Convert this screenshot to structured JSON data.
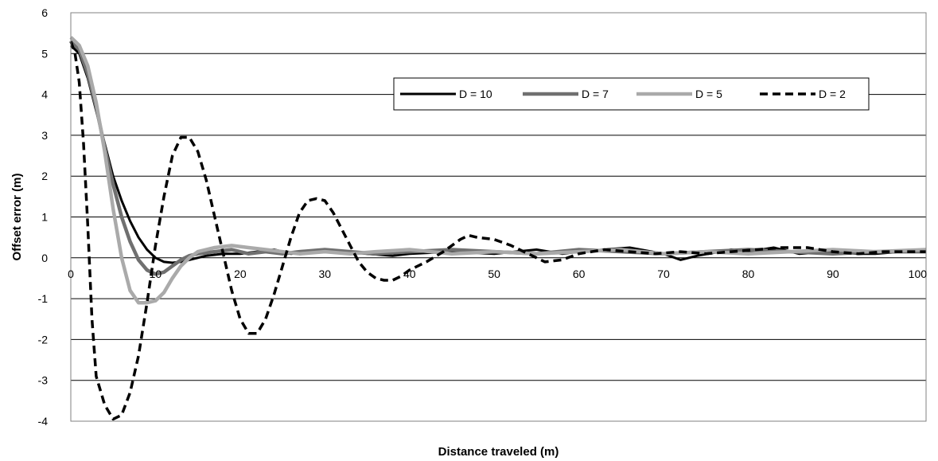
{
  "chart_data": {
    "type": "line",
    "title": "",
    "xlabel": "Distance traveled (m)",
    "ylabel": "Offset error (m)",
    "xlim": [
      0,
      101
    ],
    "ylim": [
      -4,
      6
    ],
    "x_ticks": [
      0,
      10,
      20,
      30,
      40,
      50,
      60,
      70,
      80,
      90,
      100
    ],
    "x_tick_labels": [
      "0",
      "10",
      "20",
      "30",
      "40",
      "50",
      "60",
      "70",
      "80",
      "90",
      "100"
    ],
    "y_ticks": [
      -4,
      -3,
      -2,
      -1,
      0,
      1,
      2,
      3,
      4,
      5,
      6
    ],
    "y_tick_labels": [
      "-4",
      "-3",
      "-2",
      "-1",
      "0",
      "1",
      "2",
      "3",
      "4",
      "5",
      "6"
    ],
    "grid": "horizontal",
    "legend_position": "top-right",
    "series": [
      {
        "name": "D = 10",
        "color": "#000000",
        "style": "solid",
        "points": [
          [
            0,
            5.2
          ],
          [
            1,
            5.0
          ],
          [
            2,
            4.4
          ],
          [
            3,
            3.6
          ],
          [
            4,
            2.8
          ],
          [
            5,
            2.0
          ],
          [
            6,
            1.4
          ],
          [
            7,
            0.9
          ],
          [
            8,
            0.5
          ],
          [
            9,
            0.2
          ],
          [
            10,
            0.0
          ],
          [
            11,
            -0.1
          ],
          [
            12,
            -0.12
          ],
          [
            13,
            -0.1
          ],
          [
            14,
            -0.05
          ],
          [
            15,
            0.0
          ],
          [
            16,
            0.05
          ],
          [
            18,
            0.1
          ],
          [
            20,
            0.1
          ],
          [
            22,
            0.15
          ],
          [
            24,
            0.2
          ],
          [
            26,
            0.1
          ],
          [
            28,
            0.15
          ],
          [
            30,
            0.2
          ],
          [
            32,
            0.15
          ],
          [
            35,
            0.1
          ],
          [
            38,
            0.05
          ],
          [
            40,
            0.1
          ],
          [
            45,
            0.15
          ],
          [
            50,
            0.1
          ],
          [
            55,
            0.2
          ],
          [
            58,
            0.1
          ],
          [
            60,
            0.15
          ],
          [
            63,
            0.2
          ],
          [
            66,
            0.25
          ],
          [
            70,
            0.1
          ],
          [
            72,
            -0.05
          ],
          [
            74,
            0.05
          ],
          [
            78,
            0.2
          ],
          [
            80,
            0.15
          ],
          [
            83,
            0.25
          ],
          [
            86,
            0.1
          ],
          [
            90,
            0.15
          ],
          [
            93,
            0.1
          ],
          [
            95,
            0.1
          ],
          [
            98,
            0.15
          ],
          [
            101,
            0.15
          ]
        ]
      },
      {
        "name": "D = 7",
        "color": "#707070",
        "style": "solid",
        "points": [
          [
            0,
            5.3
          ],
          [
            1,
            5.1
          ],
          [
            2,
            4.5
          ],
          [
            3,
            3.7
          ],
          [
            4,
            2.7
          ],
          [
            5,
            1.8
          ],
          [
            6,
            1.0
          ],
          [
            7,
            0.4
          ],
          [
            8,
            -0.05
          ],
          [
            9,
            -0.3
          ],
          [
            10,
            -0.4
          ],
          [
            11,
            -0.35
          ],
          [
            12,
            -0.2
          ],
          [
            13,
            -0.05
          ],
          [
            14,
            0.05
          ],
          [
            15,
            0.1
          ],
          [
            17,
            0.15
          ],
          [
            19,
            0.2
          ],
          [
            21,
            0.1
          ],
          [
            23,
            0.15
          ],
          [
            25,
            0.1
          ],
          [
            27,
            0.15
          ],
          [
            30,
            0.2
          ],
          [
            33,
            0.15
          ],
          [
            36,
            0.1
          ],
          [
            40,
            0.15
          ],
          [
            45,
            0.2
          ],
          [
            50,
            0.15
          ],
          [
            55,
            0.1
          ],
          [
            60,
            0.2
          ],
          [
            65,
            0.15
          ],
          [
            70,
            0.1
          ],
          [
            75,
            0.15
          ],
          [
            80,
            0.2
          ],
          [
            85,
            0.15
          ],
          [
            90,
            0.1
          ],
          [
            95,
            0.15
          ],
          [
            101,
            0.15
          ]
        ]
      },
      {
        "name": "D = 5",
        "color": "#aaaaaa",
        "style": "solid",
        "points": [
          [
            0,
            5.4
          ],
          [
            1,
            5.2
          ],
          [
            2,
            4.7
          ],
          [
            3,
            3.8
          ],
          [
            4,
            2.6
          ],
          [
            5,
            1.2
          ],
          [
            6,
            0.0
          ],
          [
            7,
            -0.8
          ],
          [
            8,
            -1.1
          ],
          [
            9,
            -1.1
          ],
          [
            10,
            -1.05
          ],
          [
            11,
            -0.85
          ],
          [
            12,
            -0.5
          ],
          [
            13,
            -0.2
          ],
          [
            14,
            0.0
          ],
          [
            15,
            0.15
          ],
          [
            17,
            0.25
          ],
          [
            19,
            0.3
          ],
          [
            21,
            0.25
          ],
          [
            23,
            0.2
          ],
          [
            25,
            0.15
          ],
          [
            27,
            0.1
          ],
          [
            30,
            0.15
          ],
          [
            33,
            0.1
          ],
          [
            36,
            0.15
          ],
          [
            40,
            0.2
          ],
          [
            45,
            0.1
          ],
          [
            50,
            0.15
          ],
          [
            55,
            0.1
          ],
          [
            60,
            0.15
          ],
          [
            65,
            0.2
          ],
          [
            70,
            0.1
          ],
          [
            75,
            0.15
          ],
          [
            80,
            0.1
          ],
          [
            85,
            0.15
          ],
          [
            90,
            0.2
          ],
          [
            95,
            0.15
          ],
          [
            101,
            0.2
          ]
        ]
      },
      {
        "name": "D = 2",
        "color": "#000000",
        "style": "dashed",
        "points": [
          [
            0,
            5.3
          ],
          [
            0.5,
            5.0
          ],
          [
            1,
            4.3
          ],
          [
            1.5,
            2.8
          ],
          [
            2,
            0.8
          ],
          [
            2.5,
            -1.5
          ],
          [
            3,
            -2.9
          ],
          [
            4,
            -3.6
          ],
          [
            5,
            -3.95
          ],
          [
            6,
            -3.85
          ],
          [
            7,
            -3.3
          ],
          [
            8,
            -2.4
          ],
          [
            9,
            -1.1
          ],
          [
            10,
            0.3
          ],
          [
            11,
            1.5
          ],
          [
            12,
            2.5
          ],
          [
            13,
            2.95
          ],
          [
            14,
            2.95
          ],
          [
            15,
            2.6
          ],
          [
            16,
            1.9
          ],
          [
            17,
            1.0
          ],
          [
            18,
            0.1
          ],
          [
            19,
            -0.8
          ],
          [
            20,
            -1.5
          ],
          [
            21,
            -1.85
          ],
          [
            22,
            -1.85
          ],
          [
            23,
            -1.5
          ],
          [
            24,
            -0.9
          ],
          [
            25,
            -0.2
          ],
          [
            26,
            0.5
          ],
          [
            27,
            1.1
          ],
          [
            28,
            1.4
          ],
          [
            29,
            1.45
          ],
          [
            30,
            1.4
          ],
          [
            31,
            1.1
          ],
          [
            32,
            0.7
          ],
          [
            33,
            0.3
          ],
          [
            34,
            -0.1
          ],
          [
            35,
            -0.35
          ],
          [
            36,
            -0.5
          ],
          [
            37,
            -0.55
          ],
          [
            38,
            -0.55
          ],
          [
            39,
            -0.45
          ],
          [
            40,
            -0.3
          ],
          [
            42,
            -0.1
          ],
          [
            44,
            0.15
          ],
          [
            46,
            0.45
          ],
          [
            47,
            0.55
          ],
          [
            48,
            0.5
          ],
          [
            50,
            0.45
          ],
          [
            52,
            0.3
          ],
          [
            54,
            0.1
          ],
          [
            56,
            -0.1
          ],
          [
            58,
            -0.05
          ],
          [
            60,
            0.1
          ],
          [
            63,
            0.2
          ],
          [
            66,
            0.15
          ],
          [
            69,
            0.1
          ],
          [
            72,
            0.15
          ],
          [
            75,
            0.1
          ],
          [
            78,
            0.15
          ],
          [
            81,
            0.2
          ],
          [
            84,
            0.25
          ],
          [
            87,
            0.25
          ],
          [
            90,
            0.15
          ],
          [
            93,
            0.1
          ],
          [
            96,
            0.15
          ],
          [
            101,
            0.15
          ]
        ]
      }
    ]
  }
}
